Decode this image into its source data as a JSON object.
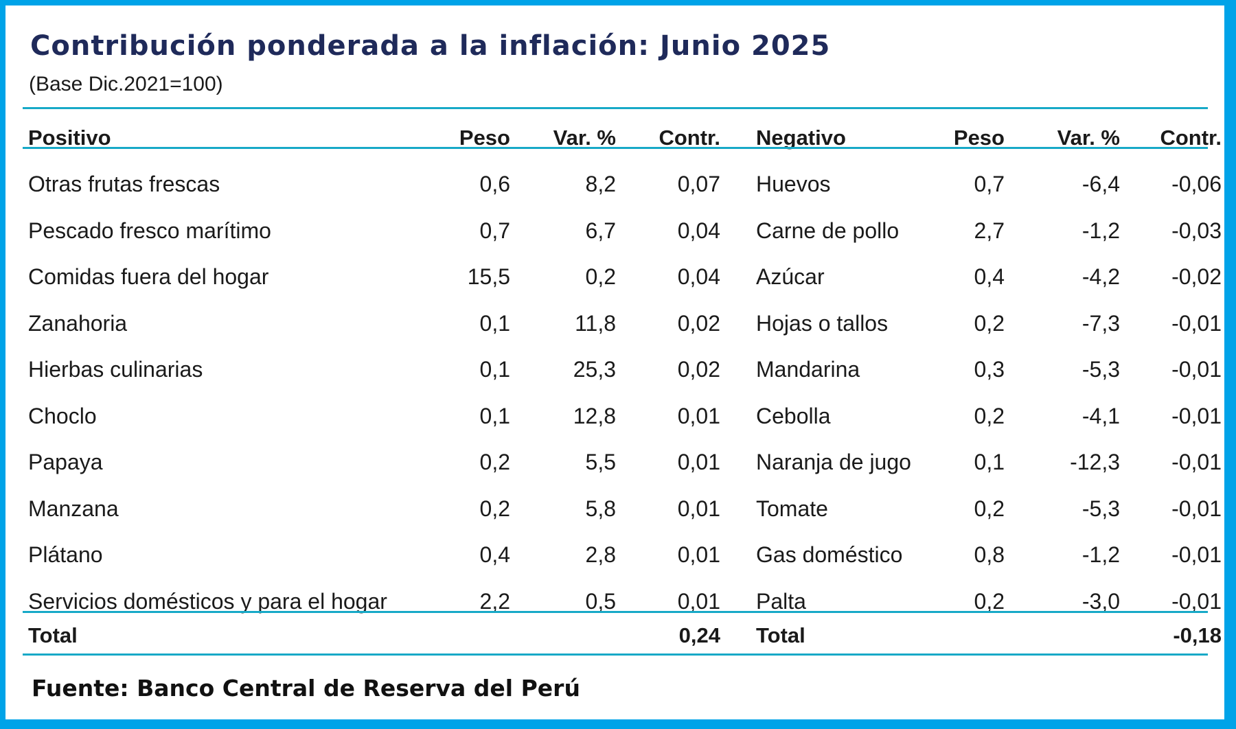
{
  "title": "Contribución ponderada a la inflación: Junio 2025",
  "subtitle": "(Base Dic.2021=100)",
  "headers": {
    "positivo": "Positivo",
    "peso_pos": "Peso",
    "var_pos": "Var. %",
    "contr_pos": "Contr.",
    "negativo": "Negativo",
    "peso_neg": "Peso",
    "var_neg": "Var. %",
    "contr_neg": "Contr."
  },
  "rows": [
    {
      "pos_item": "Otras frutas frescas",
      "pos_peso": "0,6",
      "pos_var": "8,2",
      "pos_contr": "0,07",
      "neg_item": "Huevos",
      "neg_peso": "0,7",
      "neg_var": "-6,4",
      "neg_contr": "-0,06"
    },
    {
      "pos_item": "Pescado fresco marítimo",
      "pos_peso": "0,7",
      "pos_var": "6,7",
      "pos_contr": "0,04",
      "neg_item": "Carne de pollo",
      "neg_peso": "2,7",
      "neg_var": "-1,2",
      "neg_contr": "-0,03"
    },
    {
      "pos_item": "Comidas fuera del hogar",
      "pos_peso": "15,5",
      "pos_var": "0,2",
      "pos_contr": "0,04",
      "neg_item": "Azúcar",
      "neg_peso": "0,4",
      "neg_var": "-4,2",
      "neg_contr": "-0,02"
    },
    {
      "pos_item": "Zanahoria",
      "pos_peso": "0,1",
      "pos_var": "11,8",
      "pos_contr": "0,02",
      "neg_item": "Hojas o tallos",
      "neg_peso": "0,2",
      "neg_var": "-7,3",
      "neg_contr": "-0,01"
    },
    {
      "pos_item": "Hierbas culinarias",
      "pos_peso": "0,1",
      "pos_var": "25,3",
      "pos_contr": "0,02",
      "neg_item": "Mandarina",
      "neg_peso": "0,3",
      "neg_var": "-5,3",
      "neg_contr": "-0,01"
    },
    {
      "pos_item": "Choclo",
      "pos_peso": "0,1",
      "pos_var": "12,8",
      "pos_contr": "0,01",
      "neg_item": "Cebolla",
      "neg_peso": "0,2",
      "neg_var": "-4,1",
      "neg_contr": "-0,01"
    },
    {
      "pos_item": "Papaya",
      "pos_peso": "0,2",
      "pos_var": "5,5",
      "pos_contr": "0,01",
      "neg_item": "Naranja de jugo",
      "neg_peso": "0,1",
      "neg_var": "-12,3",
      "neg_contr": "-0,01"
    },
    {
      "pos_item": "Manzana",
      "pos_peso": "0,2",
      "pos_var": "5,8",
      "pos_contr": "0,01",
      "neg_item": "Tomate",
      "neg_peso": "0,2",
      "neg_var": "-5,3",
      "neg_contr": "-0,01"
    },
    {
      "pos_item": "Plátano",
      "pos_peso": "0,4",
      "pos_var": "2,8",
      "pos_contr": "0,01",
      "neg_item": "Gas doméstico",
      "neg_peso": "0,8",
      "neg_var": "-1,2",
      "neg_contr": "-0,01"
    },
    {
      "pos_item": "Servicios domésticos y para el hogar",
      "pos_peso": "2,2",
      "pos_var": "0,5",
      "pos_contr": "0,01",
      "neg_item": "Palta",
      "neg_peso": "0,2",
      "neg_var": "-3,0",
      "neg_contr": "-0,01"
    }
  ],
  "totals": {
    "pos_label": "Total",
    "pos_value": "0,24",
    "neg_label": "Total",
    "neg_value": "-0,18"
  },
  "source": "Fuente: Banco Central de Reserva del Perú",
  "colors": {
    "frame": "#00A3E8",
    "rule": "#17A9C7",
    "title": "#1F2A5A"
  }
}
